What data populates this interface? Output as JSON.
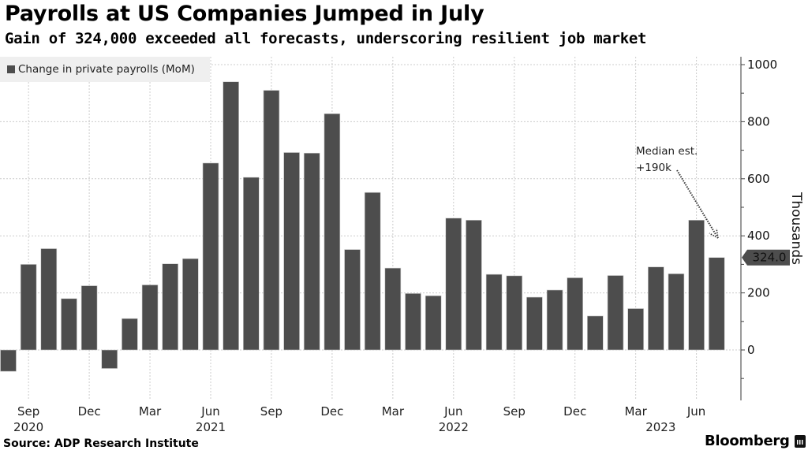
{
  "header": {
    "title": "Payrolls at US Companies Jumped in July",
    "subtitle": "Gain of 324,000 exceeded all forecasts, underscoring resilient job market"
  },
  "footer": {
    "source": "Source: ADP Research Institute",
    "brand": "Bloomberg"
  },
  "colors": {
    "bar": "#4d4d4d",
    "grid": "#cccccc",
    "legend_bg": "#efefef",
    "badge": "#4d4d4d"
  },
  "chart_data": {
    "type": "bar",
    "title": "Payrolls at US Companies Jumped in July",
    "subtitle": "Gain of 324,000 exceeded all forecasts, underscoring resilient job market",
    "legend": [
      "Change in private payrolls (MoM)"
    ],
    "legend_position": "top-left",
    "ylabel": "Thousands",
    "xlabel": "",
    "ylim": [
      -150,
      1000
    ],
    "y_ticks": [
      0,
      200,
      400,
      600,
      800,
      1000
    ],
    "y_axis_side": "right",
    "grid": true,
    "categories": [
      "2020-08",
      "2020-09",
      "2020-10",
      "2020-11",
      "2020-12",
      "2021-01",
      "2021-02",
      "2021-03",
      "2021-04",
      "2021-05",
      "2021-06",
      "2021-07",
      "2021-08",
      "2021-09",
      "2021-10",
      "2021-11",
      "2021-12",
      "2022-01",
      "2022-02",
      "2022-03",
      "2022-04",
      "2022-05",
      "2022-06",
      "2022-07",
      "2022-08",
      "2022-09",
      "2022-10",
      "2022-11",
      "2022-12",
      "2023-01",
      "2023-02",
      "2023-03",
      "2023-04",
      "2023-05",
      "2023-06",
      "2023-07"
    ],
    "series": [
      {
        "name": "Change in private payrolls (MoM)",
        "values": [
          -75,
          300,
          355,
          180,
          225,
          -65,
          110,
          228,
          302,
          320,
          655,
          940,
          605,
          910,
          692,
          690,
          828,
          352,
          552,
          287,
          198,
          190,
          462,
          455,
          265,
          260,
          185,
          210,
          253,
          119,
          261,
          145,
          291,
          267,
          455,
          324
        ]
      }
    ],
    "x_tick_labels": [
      {
        "month": "Sep",
        "year": "2020",
        "index": 1
      },
      {
        "month": "Dec",
        "year": "",
        "index": 4
      },
      {
        "month": "Mar",
        "year": "",
        "index": 7
      },
      {
        "month": "Jun",
        "year": "2021",
        "index": 10
      },
      {
        "month": "Sep",
        "year": "",
        "index": 13
      },
      {
        "month": "Dec",
        "year": "",
        "index": 16
      },
      {
        "month": "Mar",
        "year": "",
        "index": 19
      },
      {
        "month": "Jun",
        "year": "2022",
        "index": 22
      },
      {
        "month": "Sep",
        "year": "",
        "index": 25
      },
      {
        "month": "Dec",
        "year": "",
        "index": 28
      },
      {
        "month": "Mar",
        "year": "",
        "index": 31
      },
      {
        "month": "Jun",
        "year": "",
        "index": 34
      }
    ],
    "year_labels": [
      {
        "year": "2020",
        "index": 1
      },
      {
        "year": "2021",
        "index": 10
      },
      {
        "year": "2022",
        "index": 22
      },
      {
        "year": "2023",
        "index": 32
      }
    ],
    "last_value_badge": "324.0",
    "annotations": [
      {
        "text_line1": "Median est.",
        "text_line2": "+190k",
        "points_to_index": 35
      }
    ]
  }
}
